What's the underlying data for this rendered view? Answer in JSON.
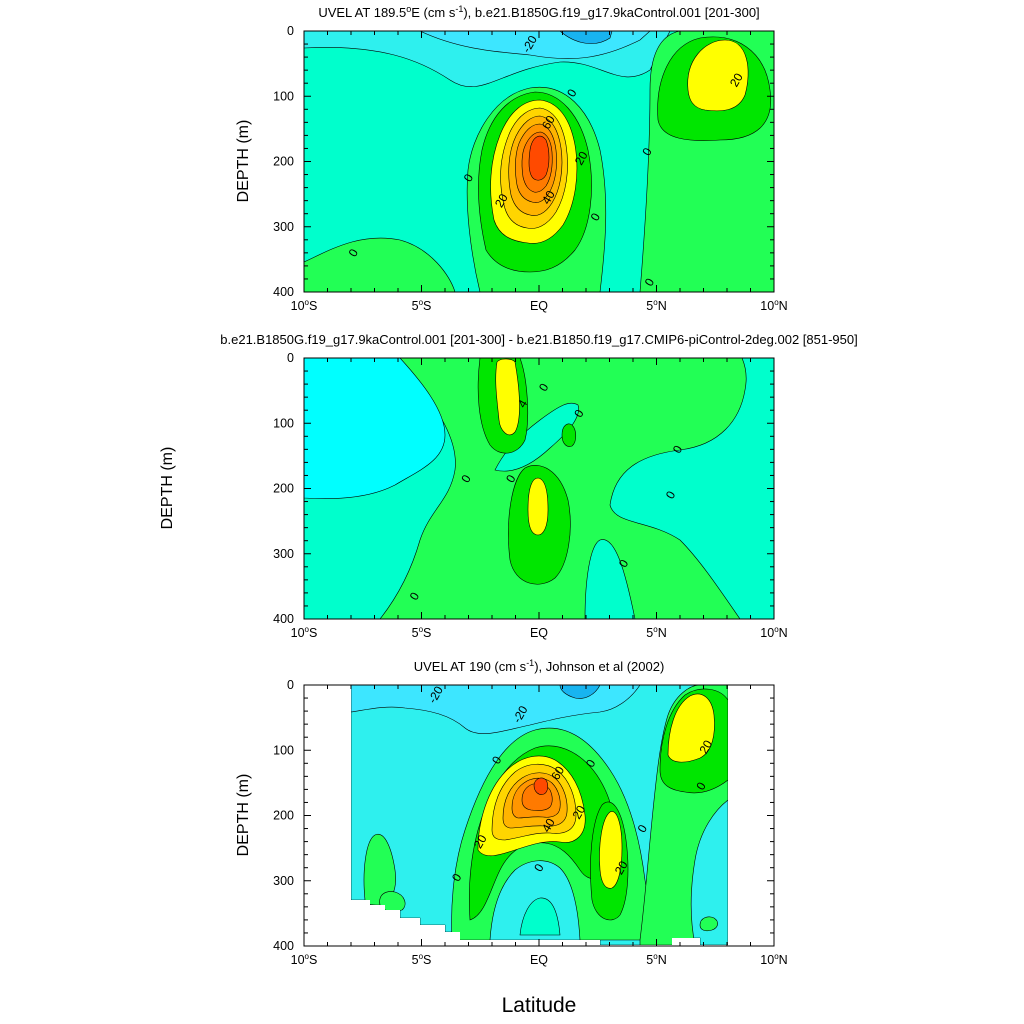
{
  "figure": {
    "xlabel": "Latitude"
  },
  "colors": {
    "lev_m30": "#18b4f0",
    "lev_m20": "#3de6ff",
    "lev_m10": "#2ef0ee",
    "lev_m0": "#00ffcc",
    "lev_0": "#22ff55",
    "lev_10": "#00e600",
    "lev_20": "#ffff00",
    "lev_30": "#ffd500",
    "lev_40": "#ffb400",
    "lev_50": "#ff9600",
    "lev_60": "#ff7a00",
    "lev_70": "#ff4a00",
    "diff_neg2": "#00ffff",
    "diff_neg": "#00ffcc",
    "diff_pos": "#22ff55",
    "diff_pos4": "#ffff00"
  },
  "chart_data": [
    {
      "type": "contour",
      "title_main": "UVEL AT 189.5",
      "title_sup_deg": "o",
      "title_mid": "E (cm s",
      "title_sup_exp": "-1",
      "title_rest": "), b.e21.B1850G.f19_g17.9kaControl.001 [201-300]",
      "ylabel": "DEPTH (m)",
      "xlim": [
        -10,
        10
      ],
      "ylim": [
        0,
        400
      ],
      "y_inverted": true,
      "x_ticks": [
        {
          "value": -10,
          "label": "10",
          "deg": "o",
          "hemi": "S"
        },
        {
          "value": -5,
          "label": "5",
          "deg": "o",
          "hemi": "S"
        },
        {
          "value": 0,
          "label": "EQ",
          "deg": "",
          "hemi": ""
        },
        {
          "value": 5,
          "label": "5",
          "deg": "o",
          "hemi": "N"
        },
        {
          "value": 10,
          "label": "10",
          "deg": "o",
          "hemi": "N"
        }
      ],
      "y_ticks": [
        0,
        100,
        200,
        300,
        400
      ],
      "contour_labels": [
        {
          "text": "-20",
          "x": -0.4,
          "y": 20
        },
        {
          "text": "20",
          "x": 8.4,
          "y": 75
        },
        {
          "text": "0",
          "x": 1.4,
          "y": 95
        },
        {
          "text": "60",
          "x": 0.4,
          "y": 140
        },
        {
          "text": "20",
          "x": 1.8,
          "y": 195
        },
        {
          "text": "0",
          "x": -3.0,
          "y": 225
        },
        {
          "text": "20",
          "x": -1.6,
          "y": 260
        },
        {
          "text": "40",
          "x": 0.4,
          "y": 255
        },
        {
          "text": "0",
          "x": 4.6,
          "y": 185
        },
        {
          "text": "0",
          "x": 2.4,
          "y": 285
        },
        {
          "text": "0",
          "x": -7.9,
          "y": 340
        },
        {
          "text": "0",
          "x": 4.7,
          "y": 385
        }
      ]
    },
    {
      "type": "contour",
      "title_main": "b.e21.B1850G.f19_g17.9kaControl.001 [201-300] - b.e21.B1850.f19_g17.CMIP6-piControl-2deg.002 [851-950]",
      "ylabel": "DEPTH (m)",
      "xlim": [
        -10,
        10
      ],
      "ylim": [
        0,
        400
      ],
      "y_inverted": true,
      "x_ticks": [
        {
          "value": -10,
          "label": "10",
          "deg": "o",
          "hemi": "S"
        },
        {
          "value": -5,
          "label": "5",
          "deg": "o",
          "hemi": "S"
        },
        {
          "value": 0,
          "label": "EQ",
          "deg": "",
          "hemi": ""
        },
        {
          "value": 5,
          "label": "5",
          "deg": "o",
          "hemi": "N"
        },
        {
          "value": 10,
          "label": "10",
          "deg": "o",
          "hemi": "N"
        }
      ],
      "y_ticks": [
        0,
        100,
        200,
        300,
        400
      ],
      "contour_labels": [
        {
          "text": "4",
          "x": -0.7,
          "y": 70
        },
        {
          "text": "0",
          "x": 0.2,
          "y": 45
        },
        {
          "text": "0",
          "x": 1.7,
          "y": 85
        },
        {
          "text": "0",
          "x": 5.9,
          "y": 140
        },
        {
          "text": "0",
          "x": -3.1,
          "y": 185
        },
        {
          "text": "0",
          "x": -1.2,
          "y": 185
        },
        {
          "text": "0",
          "x": 5.6,
          "y": 210
        },
        {
          "text": "0",
          "x": 3.6,
          "y": 315
        },
        {
          "text": "0",
          "x": -5.3,
          "y": 365
        }
      ]
    },
    {
      "type": "contour",
      "title_main": "UVEL AT 190 (cm s",
      "title_sup_exp": "-1",
      "title_rest": "), Johnson et al (2002)",
      "ylabel": "DEPTH (m)",
      "xlim": [
        -10,
        10
      ],
      "ylim": [
        0,
        400
      ],
      "y_inverted": true,
      "x_ticks": [
        {
          "value": -10,
          "label": "10",
          "deg": "o",
          "hemi": "S"
        },
        {
          "value": -5,
          "label": "5",
          "deg": "o",
          "hemi": "S"
        },
        {
          "value": 0,
          "label": "EQ",
          "deg": "",
          "hemi": ""
        },
        {
          "value": 5,
          "label": "5",
          "deg": "o",
          "hemi": "N"
        },
        {
          "value": 10,
          "label": "10",
          "deg": "o",
          "hemi": "N"
        }
      ],
      "y_ticks": [
        0,
        100,
        200,
        300,
        400
      ],
      "contour_labels": [
        {
          "text": "-20",
          "x": -4.4,
          "y": 15
        },
        {
          "text": "-20",
          "x": -0.8,
          "y": 45
        },
        {
          "text": "20",
          "x": 7.1,
          "y": 95
        },
        {
          "text": "0",
          "x": -1.8,
          "y": 115
        },
        {
          "text": "0",
          "x": 2.2,
          "y": 120
        },
        {
          "text": "60",
          "x": 0.8,
          "y": 135
        },
        {
          "text": "0",
          "x": 6.9,
          "y": 155
        },
        {
          "text": "20",
          "x": 1.7,
          "y": 195
        },
        {
          "text": "40",
          "x": 0.4,
          "y": 215
        },
        {
          "text": "0",
          "x": 4.4,
          "y": 220
        },
        {
          "text": "20",
          "x": -2.5,
          "y": 240
        },
        {
          "text": "20",
          "x": 3.5,
          "y": 280
        },
        {
          "text": "0",
          "x": 0,
          "y": 280
        },
        {
          "text": "0",
          "x": -3.5,
          "y": 295
        }
      ]
    }
  ]
}
